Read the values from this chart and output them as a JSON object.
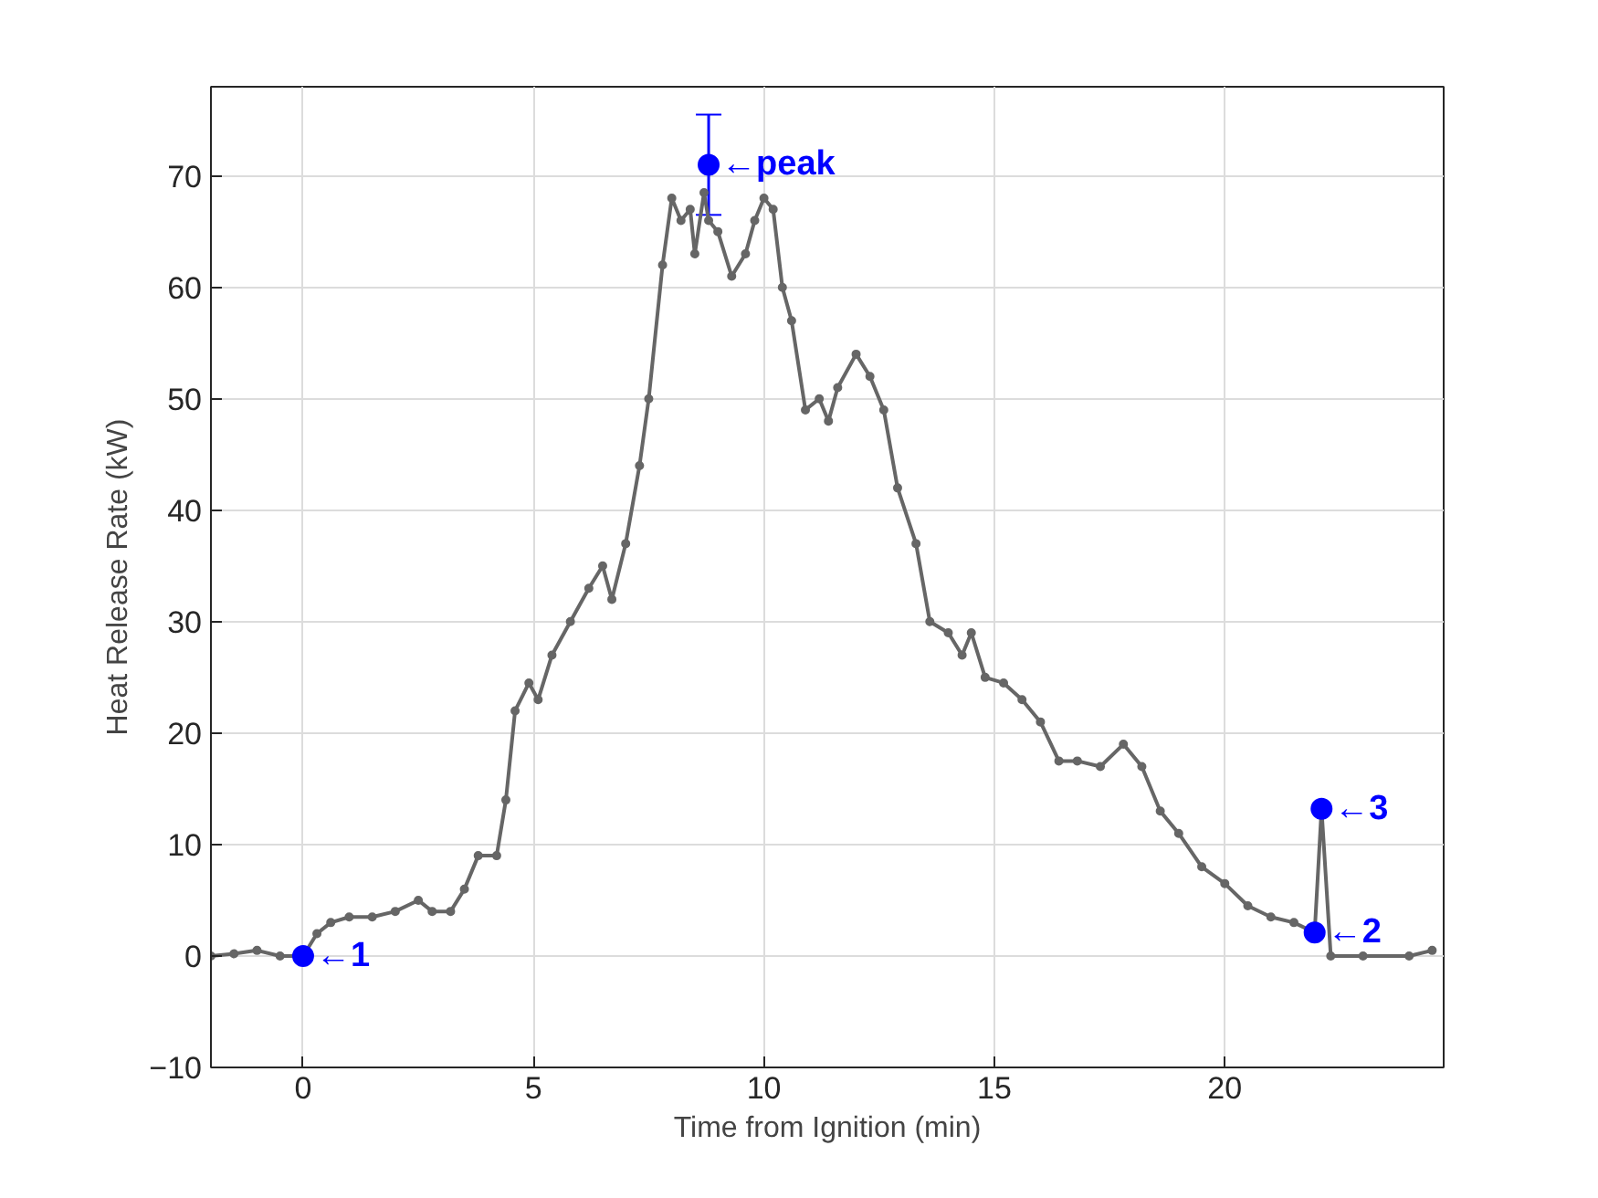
{
  "chart_data": {
    "type": "line",
    "xlabel": "Time from Ignition (min)",
    "ylabel": "Heat Release Rate (kW)",
    "xlim": [
      -2,
      24.75
    ],
    "ylim": [
      -10,
      78
    ],
    "xticks": [
      0,
      5,
      10,
      15,
      20
    ],
    "yticks": [
      -10,
      0,
      10,
      20,
      30,
      40,
      50,
      60,
      70
    ],
    "grid": true,
    "series": [
      {
        "color": "#666666",
        "marker": "circle",
        "line_style": "solid",
        "x": [
          -2,
          -1.5,
          -1,
          -0.5,
          0,
          0.3,
          0.6,
          1,
          1.5,
          2,
          2.5,
          2.8,
          3.2,
          3.5,
          3.8,
          4.2,
          4.4,
          4.6,
          4.9,
          5.1,
          5.4,
          5.8,
          6.2,
          6.5,
          6.7,
          7,
          7.3,
          7.5,
          7.8,
          8,
          8.2,
          8.4,
          8.5,
          8.7,
          8.8,
          9,
          9.3,
          9.6,
          9.8,
          10,
          10.2,
          10.4,
          10.6,
          10.9,
          11.2,
          11.4,
          11.6,
          12,
          12.3,
          12.6,
          12.9,
          13.3,
          13.6,
          14,
          14.3,
          14.5,
          14.8,
          15.2,
          15.6,
          16,
          16.4,
          16.8,
          17.3,
          17.8,
          18.2,
          18.6,
          19,
          19.5,
          20,
          20.5,
          21,
          21.5,
          21.95,
          22.1,
          22.3,
          23,
          24,
          24.5
        ],
        "values": [
          0,
          0.2,
          0.5,
          0,
          0,
          2,
          3,
          3.5,
          3.5,
          4,
          5,
          4,
          4,
          6,
          9,
          9,
          14,
          22,
          24.5,
          23,
          27,
          30,
          33,
          35,
          32,
          37,
          44,
          50,
          62,
          68,
          66,
          67,
          63,
          68.5,
          66,
          65,
          61,
          63,
          66,
          68,
          67,
          60,
          57,
          49,
          50,
          48,
          51,
          54,
          52,
          49,
          42,
          37,
          30,
          29,
          27,
          29,
          25,
          24.5,
          23,
          21,
          17.5,
          17.5,
          17,
          19,
          17,
          13,
          11,
          8,
          6.5,
          4.5,
          3.5,
          3,
          2.1,
          13.2,
          0,
          0,
          0,
          0.5
        ]
      },
      {
        "type": "scatter",
        "color": "#0000ff",
        "marker": "circle",
        "x": [
          0,
          21.95,
          22.1,
          8.8
        ],
        "values": [
          0,
          2.1,
          13.2,
          71
        ],
        "errors": [
          null,
          null,
          null,
          [
            66.5,
            75.5
          ]
        ]
      }
    ],
    "annotations": [
      {
        "text": "←1",
        "x": 0,
        "y": 0
      },
      {
        "text": "←2",
        "x": 21.95,
        "y": 2.1
      },
      {
        "text": "←3",
        "x": 22.1,
        "y": 13.2
      },
      {
        "text": "←peak",
        "x": 8.8,
        "y": 71
      }
    ]
  }
}
